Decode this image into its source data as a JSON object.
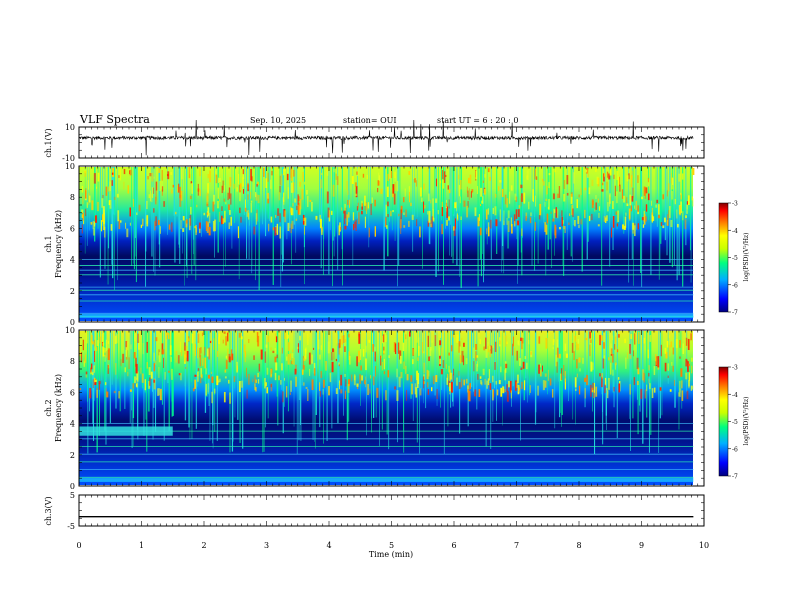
{
  "header": {
    "title": "VLF Spectra",
    "date": "Sep. 10, 2025",
    "station": "station= OUI",
    "start": "start UT =   6 : 20 : 0"
  },
  "chart_data": [
    {
      "type": "line",
      "panel": "ch1-waveform",
      "ylabel": "ch.1(V)",
      "ytick_labels": [
        "10",
        "-10"
      ],
      "ylim": [
        -10,
        10
      ],
      "xlim": [
        0,
        10
      ],
      "data_extent": [
        0,
        9.83
      ],
      "series": [
        {
          "description": "noisy waveform around ~3 V with sporadic negative spikes",
          "baseline": 3
        }
      ]
    },
    {
      "type": "heatmap",
      "panel": "ch1-spectrogram",
      "ylabel_lines": [
        "ch.1",
        "Frequency (kHz)"
      ],
      "ytick_labels": [
        "0",
        "2",
        "4",
        "6",
        "8",
        "10"
      ],
      "ylim": [
        0,
        10
      ],
      "xlim": [
        0,
        10
      ],
      "data_extent": [
        0,
        9.83
      ],
      "colorbar": {
        "label": "log(PSD)(V²/Hz)",
        "tick_labels": [
          "-3",
          "-4",
          "-5",
          "-6",
          "-7"
        ],
        "range": [
          -7,
          -3
        ]
      },
      "bands_khz": [
        0.3,
        0.5,
        1.3,
        1.7,
        2.0,
        2.2,
        3.0,
        3.3,
        3.6,
        4.0
      ]
    },
    {
      "type": "heatmap",
      "panel": "ch2-spectrogram",
      "ylabel_lines": [
        "ch.2",
        "Frequency (kHz)"
      ],
      "ytick_labels": [
        "0",
        "2",
        "4",
        "6",
        "8",
        "10"
      ],
      "ylim": [
        0,
        10
      ],
      "xlim": [
        0,
        10
      ],
      "data_extent": [
        0,
        9.83
      ],
      "colorbar": {
        "label": "log(PSD)(V²/Hz)",
        "tick_labels": [
          "-3",
          "-4",
          "-5",
          "-6",
          "-7"
        ],
        "range": [
          -7,
          -3
        ]
      },
      "bands_khz": [
        0.5,
        1.0,
        1.5,
        2.0,
        2.5,
        3.0,
        3.5,
        4.0
      ],
      "block": {
        "x": [
          0,
          1.5
        ],
        "y": [
          3.2,
          3.8
        ]
      }
    },
    {
      "type": "line",
      "panel": "ch3-waveform",
      "ylabel": "ch.3(V)",
      "ytick_labels": [
        "5",
        "-5"
      ],
      "ylim": [
        -5,
        5
      ],
      "xlim": [
        0,
        10
      ],
      "series": [
        {
          "x": [
            0,
            9.83
          ],
          "y": [
            -2,
            -2
          ]
        }
      ]
    }
  ],
  "xaxis": {
    "label": "Time (min)",
    "tick_labels": [
      "0",
      "1",
      "2",
      "3",
      "4",
      "5",
      "6",
      "7",
      "8",
      "9",
      "10"
    ]
  },
  "colors": {
    "cmap": [
      "#000080",
      "#0000ff",
      "#00b0ff",
      "#00ff80",
      "#c8ff00",
      "#ffff00",
      "#ff8000",
      "#ff0000",
      "#800000"
    ],
    "line": "#000000"
  }
}
